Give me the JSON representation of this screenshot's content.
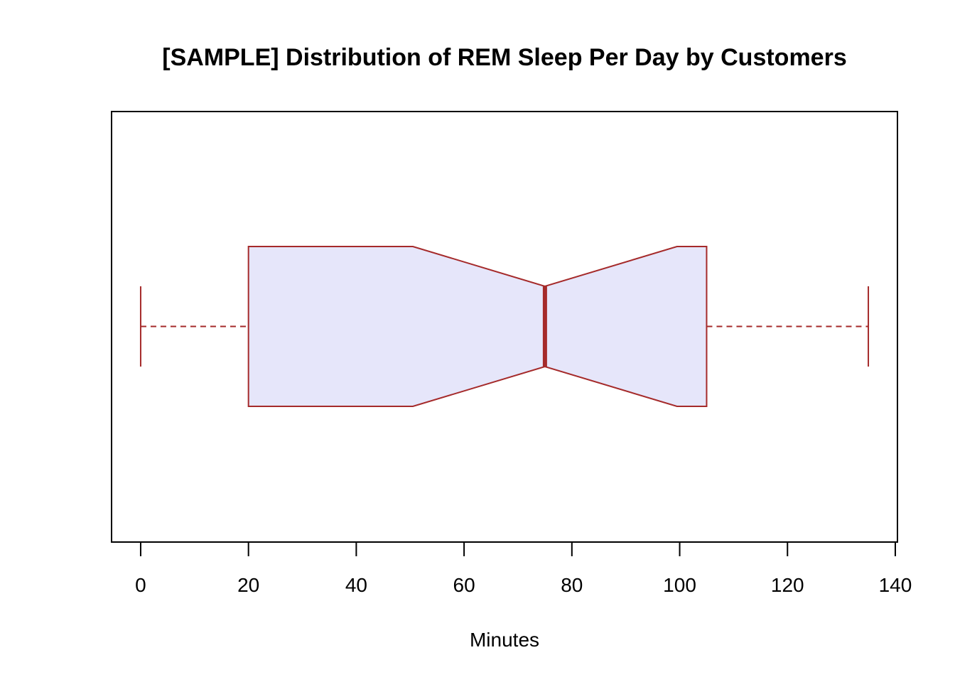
{
  "chart_data": {
    "type": "boxplot",
    "orientation": "horizontal",
    "notched": true,
    "title": "[SAMPLE] Distribution of REM Sleep Per Day by Customers",
    "xlabel": "Minutes",
    "ylabel": "",
    "xlim": [
      -5.4,
      140.4
    ],
    "xticks": [
      0,
      20,
      40,
      60,
      80,
      100,
      120,
      140
    ],
    "xtick_labels": [
      "0",
      "20",
      "40",
      "60",
      "80",
      "100",
      "120",
      "140"
    ],
    "grid": false,
    "box": {
      "whisker_low": 0,
      "q1": 20,
      "notch_low": 50.5,
      "median": 75,
      "notch_high": 99.5,
      "q3": 105,
      "whisker_high": 135
    },
    "colors": {
      "box_fill": "#E6E6FA",
      "line": "#A52A2A",
      "frame": "#000000"
    }
  }
}
